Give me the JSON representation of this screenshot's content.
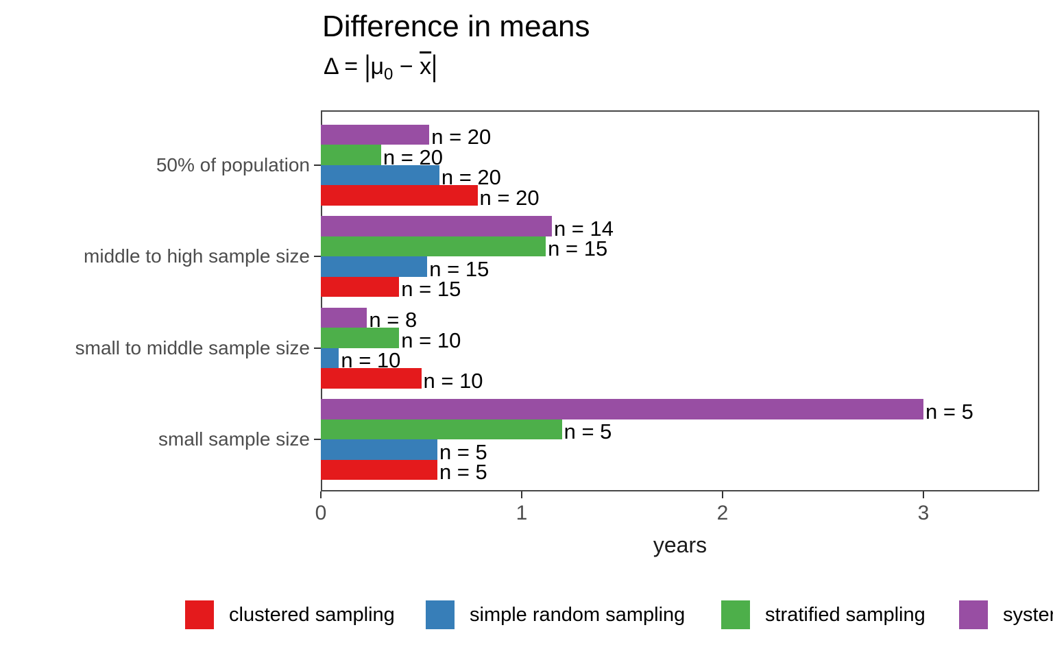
{
  "title": "Difference in means",
  "subtitle": {
    "delta": "Δ",
    "eq": " = ",
    "pipe": "|",
    "mu": "μ",
    "sub": "0",
    "minus": " − ",
    "xvar": "x"
  },
  "chart_data": {
    "type": "bar",
    "orientation": "horizontal",
    "title": "Difference in means",
    "subtitle_plain": "Δ = |μ0 − x̄|",
    "xlabel": "years",
    "ylabel": "",
    "xlim": [
      0,
      3.58
    ],
    "xticks": [
      0,
      1,
      2,
      3
    ],
    "grid": false,
    "categories": [
      "50% of population",
      "middle to high sample size",
      "small to middle sample size",
      "small sample size"
    ],
    "series": [
      {
        "name": "clustered sampling",
        "color": "#e41a1c",
        "values": [
          0.78,
          0.39,
          0.5,
          0.58
        ],
        "bar_labels": [
          "n = 20",
          "n = 15",
          "n = 10",
          "n = 5"
        ]
      },
      {
        "name": "simple random sampling",
        "color": "#377eb8",
        "values": [
          0.59,
          0.53,
          0.09,
          0.58
        ],
        "bar_labels": [
          "n = 20",
          "n = 15",
          "n = 10",
          "n = 5"
        ]
      },
      {
        "name": "stratified sampling",
        "color": "#4daf4a",
        "values": [
          0.3,
          1.12,
          0.39,
          1.2
        ],
        "bar_labels": [
          "n = 20",
          "n = 15",
          "n = 10",
          "n = 5"
        ]
      },
      {
        "name": "systematic sampling",
        "color": "#984ea3",
        "values": [
          0.54,
          1.15,
          0.23,
          3.0
        ],
        "bar_labels": [
          "n = 20",
          "n = 14",
          "n = 8",
          "n = 5"
        ]
      }
    ],
    "legend": {
      "position": "bottom",
      "visible_labels": [
        "clustered sampling",
        "simple random sampling",
        "stratified sampling",
        "syster"
      ]
    }
  }
}
